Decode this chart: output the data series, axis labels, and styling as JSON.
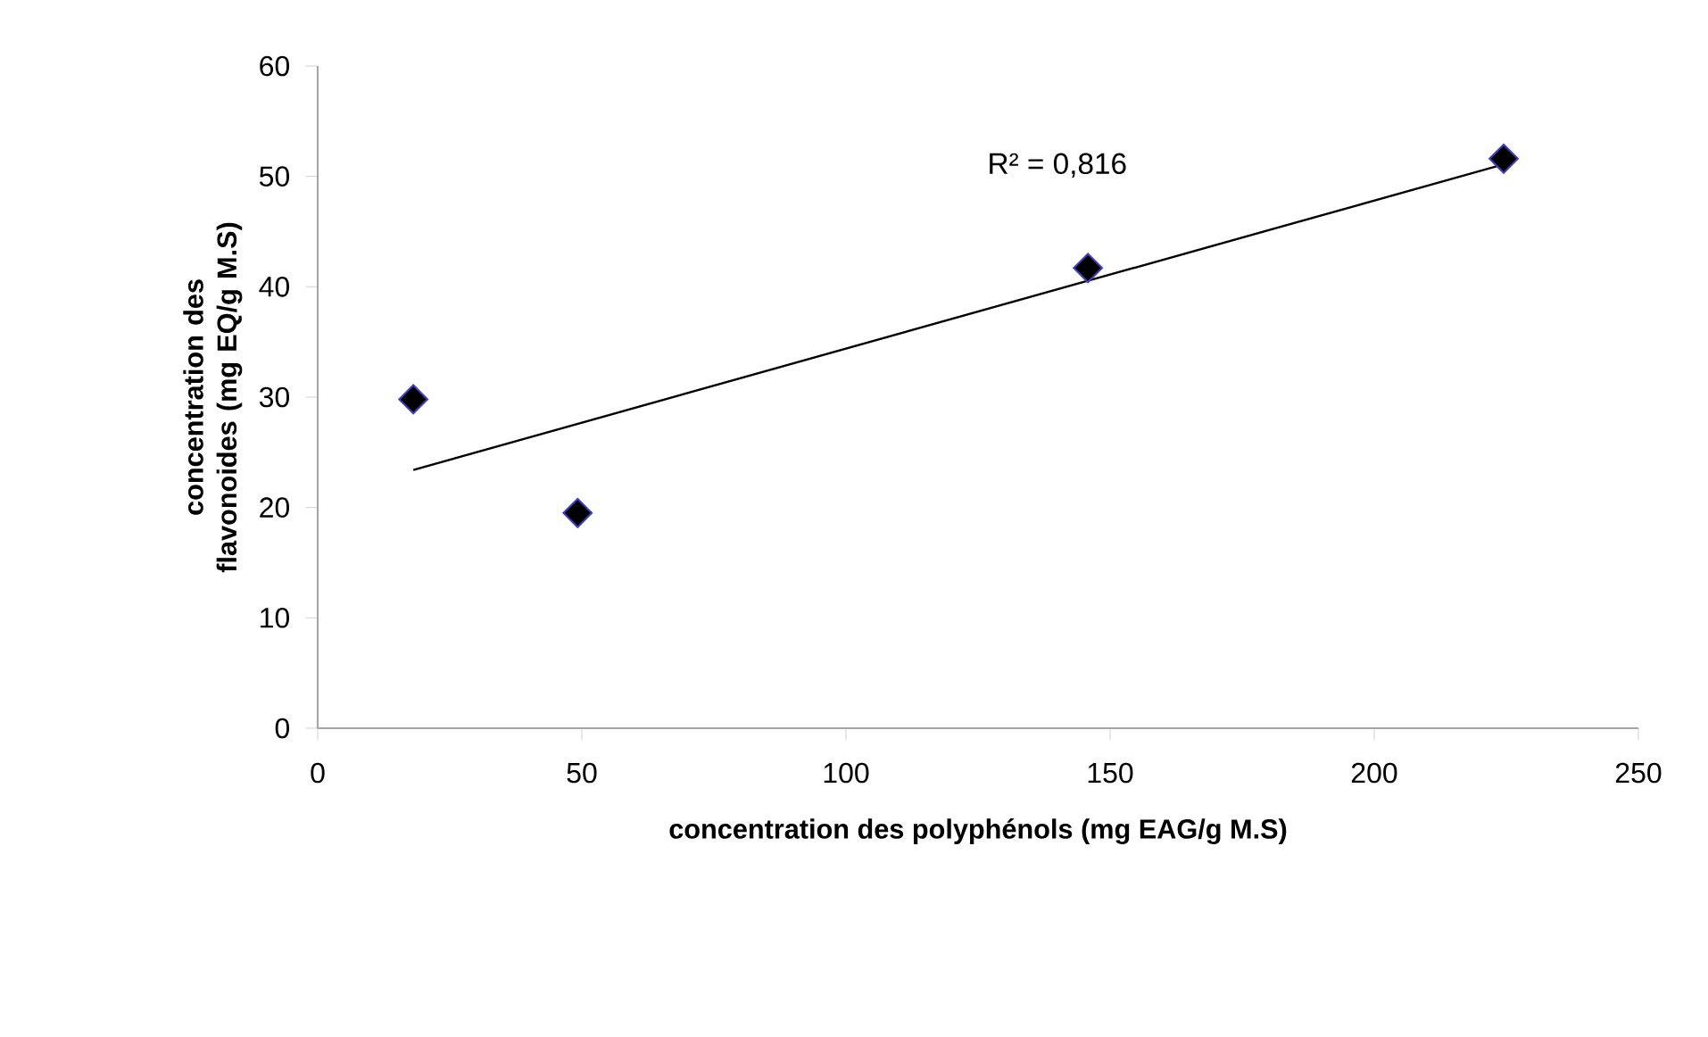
{
  "chart_data": {
    "type": "scatter",
    "xlabel": "concentration des polyphénols (mg EAG/g M.S)",
    "ylabel": "concentration des flavonoides (mg EQ/g M.S)",
    "annotations": [
      "R² = 0,816"
    ],
    "marker": "diamond",
    "xlim": [
      0,
      250
    ],
    "ylim": [
      0,
      60
    ],
    "xticks": [
      0,
      50,
      100,
      150,
      200,
      250
    ],
    "yticks": [
      0,
      10,
      20,
      30,
      40,
      50,
      60
    ],
    "grid": false,
    "series": [
      {
        "color": "#000000",
        "x": [
          18.1,
          49.2,
          145.8,
          224.5
        ],
        "values": [
          29.8,
          19.5,
          41.7,
          51.6
        ]
      },
      {
        "type": "line",
        "color": "#000000",
        "marker": "none",
        "x": [
          18.1,
          224.5
        ],
        "values": [
          23.4,
          51.1
        ]
      }
    ]
  }
}
